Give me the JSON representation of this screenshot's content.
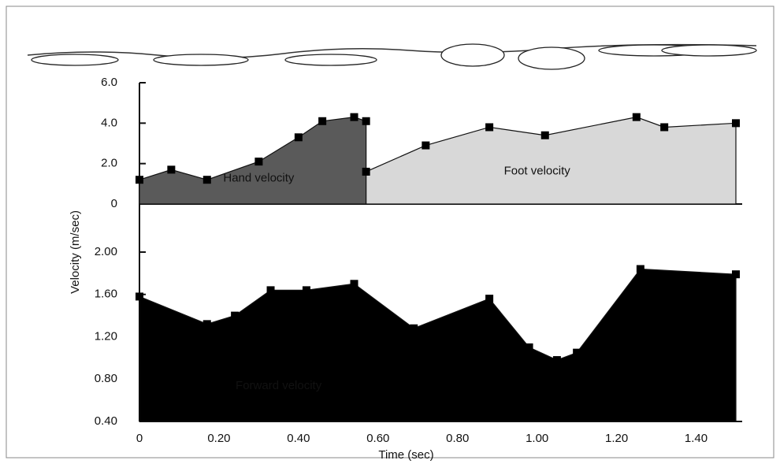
{
  "chart_data": [
    {
      "type": "area",
      "ylabel": "Velocity (m/sec)",
      "series": [
        {
          "name": "Hand velocity",
          "color": "#5a5a5a",
          "x": [
            0,
            0.08,
            0.17,
            0.3,
            0.4,
            0.46,
            0.54,
            0.57
          ],
          "values": [
            1.2,
            1.7,
            1.2,
            2.1,
            3.3,
            4.1,
            4.3,
            4.1
          ]
        },
        {
          "name": "Foot velocity",
          "color": "#d8d8d8",
          "x": [
            0.57,
            0.72,
            0.88,
            1.02,
            1.25,
            1.32,
            1.5
          ],
          "values": [
            1.6,
            2.9,
            3.8,
            3.4,
            4.3,
            3.8,
            4.0
          ]
        }
      ],
      "xlim": [
        0,
        1.5
      ],
      "ylim": [
        0,
        6
      ],
      "yticks": [
        0,
        {
          "value": 2,
          "label": "2.0"
        },
        {
          "value": 4,
          "label": "4.0"
        },
        {
          "value": 6,
          "label": "6.0"
        }
      ]
    },
    {
      "type": "area",
      "xlabel": "Time (sec)",
      "series": [
        {
          "name": "Forward velocity",
          "color": "#000000",
          "x": [
            0,
            0.17,
            0.24,
            0.33,
            0.42,
            0.54,
            0.69,
            0.88,
            0.98,
            1.05,
            1.1,
            1.26,
            1.5
          ],
          "values": [
            1.58,
            1.32,
            1.4,
            1.64,
            1.64,
            1.7,
            1.28,
            1.56,
            1.1,
            0.98,
            1.05,
            1.84,
            1.79
          ]
        }
      ],
      "xlim": [
        0,
        1.5
      ],
      "ylim": [
        0.4,
        2.0
      ],
      "xticks": [
        0,
        {
          "value": 0.2,
          "label": "0.20"
        },
        {
          "value": 0.4,
          "label": "0.40"
        },
        {
          "value": 0.6,
          "label": "0.60"
        },
        {
          "value": 0.8,
          "label": "0.80"
        },
        {
          "value": 1.0,
          "label": "1.00"
        },
        {
          "value": 1.2,
          "label": "1.20"
        },
        {
          "value": 1.4,
          "label": "1.40"
        }
      ],
      "yticks": [
        {
          "value": 0.4,
          "label": "0.40"
        },
        {
          "value": 0.8,
          "label": "0.80"
        },
        {
          "value": 1.2,
          "label": "1.20"
        },
        {
          "value": 1.6,
          "label": "1.60"
        },
        {
          "value": 2.0,
          "label": "2.00"
        }
      ]
    }
  ]
}
